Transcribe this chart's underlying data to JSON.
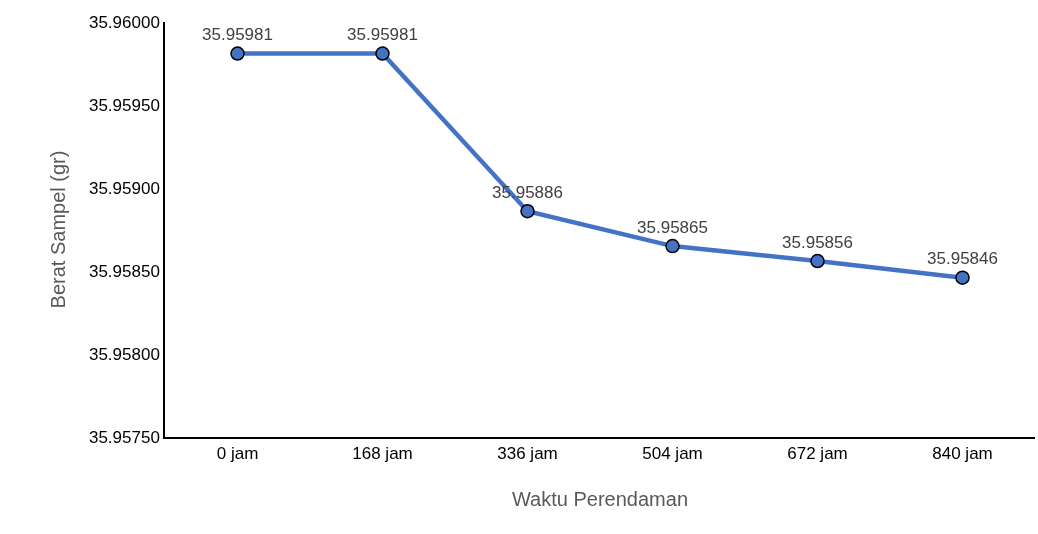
{
  "chart_data": {
    "type": "line",
    "xlabel": "Waktu Perendaman",
    "ylabel": "Berat Sampel (gr)",
    "categories": [
      "0 jam",
      "168 jam",
      "336 jam",
      "504 jam",
      "672 jam",
      "840 jam"
    ],
    "series": [
      {
        "color": "#4472c4",
        "values": [
          35.95981,
          35.95981,
          35.95886,
          35.95865,
          35.95856,
          35.95846
        ]
      }
    ],
    "ylim": [
      35.9575,
      35.96
    ],
    "yticks": [
      {
        "value": 35.9575,
        "label": "35.95750"
      },
      {
        "value": 35.958,
        "label": "35.95800"
      },
      {
        "value": 35.9585,
        "label": "35.95850"
      },
      {
        "value": 35.959,
        "label": "35.95900"
      },
      {
        "value": 35.9595,
        "label": "35.95950"
      },
      {
        "value": 35.96,
        "label": "35.96000"
      }
    ],
    "grid": false,
    "legend": false,
    "marker": "circle",
    "line_style": "solid",
    "data_labels": true
  }
}
